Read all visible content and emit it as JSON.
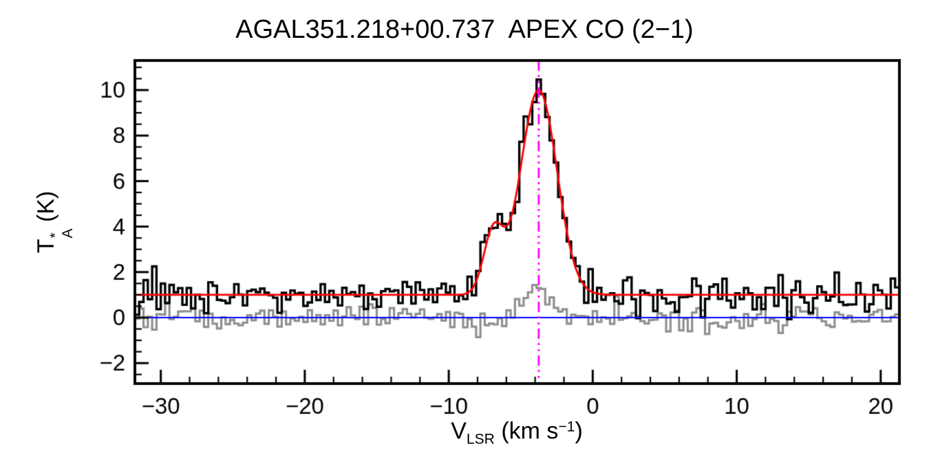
{
  "chart_data": {
    "type": "line",
    "title": "AGAL351.218+00.737  APEX CO (2−1)",
    "title_object": "AGAL351.218+00.737",
    "title_line": "APEX CO (2−1)",
    "xlabel": {
      "letter": "V",
      "subscript": "LSR",
      "mid": " (km s",
      "superscript": "−1",
      "end": ")"
    },
    "ylabel": {
      "letter": "T",
      "superscript": "*",
      "subscript": "A",
      "unit": " (K)"
    },
    "xlim": [
      -31.8,
      21.3
    ],
    "ylim": [
      -2.9,
      11.3
    ],
    "xticks": [
      -30,
      -20,
      -10,
      0,
      10,
      20
    ],
    "yticks": [
      -2,
      0,
      2,
      4,
      6,
      8,
      10
    ],
    "x_minor_step": 2,
    "y_minor_step": 0.5,
    "grid": false,
    "legend": null,
    "channel_width_kms": 0.3,
    "baseline_K": 1.0,
    "zero_line_K": 0.0,
    "vline_kms": -3.75,
    "observed_peak_K": 9.4,
    "fit_peak_K": 10.0,
    "shoulder_peak_K": 4.2,
    "fit_components": [
      {
        "center_kms": -6.9,
        "amplitude_K": 2.7,
        "fwhm_kms": 1.6
      },
      {
        "center_kms": -3.75,
        "amplitude_K": 9.0,
        "fwhm_kms": 3.0
      }
    ],
    "residual_bump": {
      "center_kms": -3.75,
      "amplitude_K": 1.25,
      "fwhm_kms": 2.2
    },
    "noise": {
      "seed": 20240317,
      "spectrum_sigma_K": 0.42,
      "residual_sigma_K": 0.3
    },
    "series": [
      {
        "name": "observed spectrum",
        "style": "histogram",
        "color": "#000000"
      },
      {
        "name": "residual / secondary spectrum",
        "style": "histogram",
        "color": "#8f8f8f"
      },
      {
        "name": "gaussian fit",
        "style": "line",
        "color": "#ff0000"
      },
      {
        "name": "zero level",
        "style": "line",
        "color": "#0000ff"
      },
      {
        "name": "systemic velocity marker",
        "style": "dash-dot vertical line",
        "color": "#ff00ff"
      }
    ],
    "colors": {
      "spectrum": "#000000",
      "residual": "#8f8f8f",
      "fit": "#ff0000",
      "zero_line": "#0000ff",
      "vline": "#ff00ff",
      "axes": "#000000",
      "background": "#ffffff"
    }
  }
}
